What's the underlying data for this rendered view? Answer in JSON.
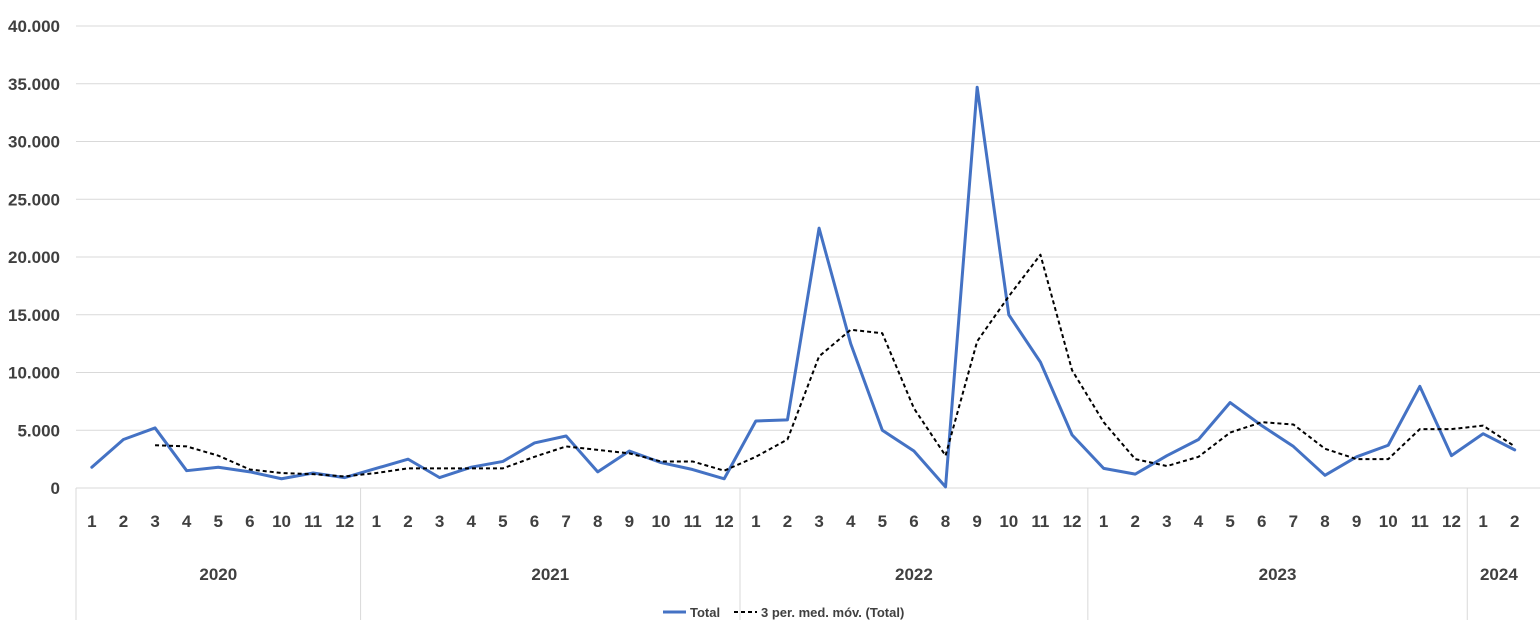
{
  "chart_data": {
    "type": "line",
    "title": "",
    "xlabel": "",
    "ylabel": "",
    "ylim": [
      0,
      40000
    ],
    "y_ticks": [
      "0",
      "5.000",
      "10.000",
      "15.000",
      "20.000",
      "25.000",
      "30.000",
      "35.000",
      "40.000"
    ],
    "grid": "horizontal",
    "legend_position": "bottom",
    "x_months": [
      "1",
      "2",
      "3",
      "4",
      "5",
      "6",
      "10",
      "11",
      "12",
      "1",
      "2",
      "3",
      "4",
      "5",
      "6",
      "7",
      "8",
      "9",
      "10",
      "11",
      "12",
      "1",
      "2",
      "3",
      "4",
      "5",
      "6",
      "8",
      "9",
      "10",
      "11",
      "12",
      "1",
      "2",
      "3",
      "4",
      "5",
      "6",
      "7",
      "8",
      "9",
      "10",
      "11",
      "12",
      "1",
      "2"
    ],
    "year_groups": [
      {
        "label": "2020",
        "count": 9
      },
      {
        "label": "2021",
        "count": 12
      },
      {
        "label": "2022",
        "count": 11
      },
      {
        "label": "2023",
        "count": 12
      },
      {
        "label": "2024",
        "count": 2
      }
    ],
    "series": [
      {
        "name": "Total",
        "color": "#4472C4",
        "style": "solid",
        "values": [
          1800,
          4200,
          5200,
          1500,
          1800,
          1400,
          800,
          1300,
          900,
          1700,
          2500,
          900,
          1800,
          2300,
          3900,
          4500,
          1400,
          3200,
          2200,
          1600,
          800,
          5800,
          5900,
          22500,
          12500,
          5000,
          3200,
          100,
          34700,
          15000,
          10900,
          4600,
          1700,
          1200,
          2800,
          4200,
          7400,
          5400,
          3600,
          1100,
          2700,
          3700,
          8800,
          2800,
          4700,
          3300
        ]
      },
      {
        "name": "3 per. med. móv. (Total)",
        "color": "#000000",
        "style": "dashed",
        "values": [
          null,
          null,
          3700,
          3600,
          2800,
          1600,
          1300,
          1200,
          1000,
          1300,
          1700,
          1700,
          1700,
          1700,
          2700,
          3600,
          3300,
          3000,
          2300,
          2300,
          1500,
          2700,
          4200,
          11400,
          13700,
          13400,
          6900,
          2800,
          12700,
          16600,
          20200,
          10200,
          5700,
          2500,
          1900,
          2700,
          4800,
          5700,
          5500,
          3400,
          2500,
          2500,
          5100,
          5100,
          5400,
          3600
        ]
      }
    ]
  }
}
